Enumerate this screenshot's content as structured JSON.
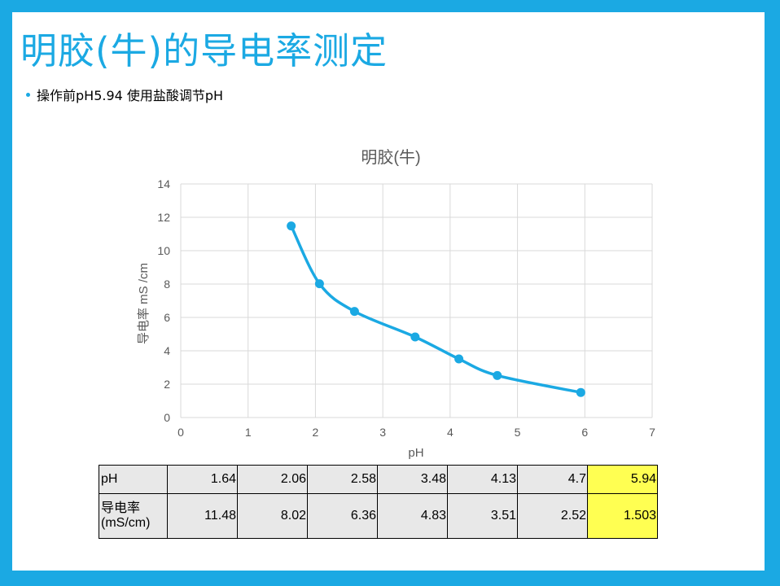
{
  "slide": {
    "title": "明胶(牛)的导电率测定",
    "bullet": "操作前pH5.94  使用盐酸调节pH"
  },
  "colors": {
    "frame": "#1ba9e3",
    "series": "#1ba9e3",
    "highlight": "#ffff52"
  },
  "chart_data": {
    "type": "line",
    "title": "明胶(牛)",
    "xlabel": "pH",
    "ylabel": "导电率 mS /cm",
    "xlim": [
      0,
      7
    ],
    "ylim": [
      0,
      14
    ],
    "xticks": [
      0,
      1,
      2,
      3,
      4,
      5,
      6,
      7
    ],
    "yticks": [
      0,
      2,
      4,
      6,
      8,
      10,
      12,
      14
    ],
    "grid": true,
    "smooth": true,
    "markers": true,
    "series": [
      {
        "x": [
          1.64,
          2.06,
          2.58,
          3.48,
          4.13,
          4.7,
          5.94
        ],
        "y": [
          11.48,
          8.02,
          6.36,
          4.83,
          3.51,
          2.52,
          1.503
        ]
      }
    ]
  },
  "table": {
    "rows": [
      {
        "label": "pH",
        "values": [
          "1.64",
          "2.06",
          "2.58",
          "3.48",
          "4.13",
          "4.7",
          "5.94"
        ]
      },
      {
        "label": "导电率\n(mS/cm)",
        "values": [
          "11.48",
          "8.02",
          "6.36",
          "4.83",
          "3.51",
          "2.52",
          "1.503"
        ]
      }
    ],
    "highlight_column": 6
  }
}
